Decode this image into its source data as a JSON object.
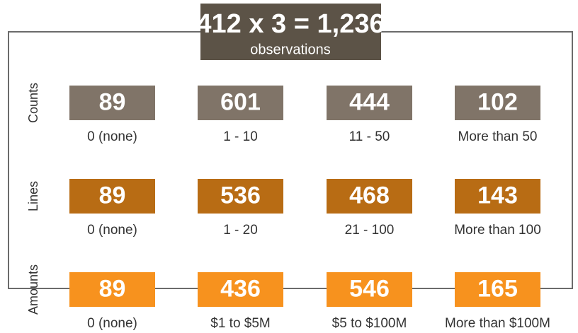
{
  "header": {
    "title": "412 x 3 = 1,236",
    "subtitle": "observations"
  },
  "rows": [
    {
      "name": "Counts",
      "color": "#807468",
      "cells": [
        {
          "value": 89,
          "label": "0 (none)"
        },
        {
          "value": 601,
          "label": "1 - 10"
        },
        {
          "value": 444,
          "label": "11 - 50"
        },
        {
          "value": 102,
          "label": "More than 50"
        }
      ]
    },
    {
      "name": "Lines",
      "color": "#b86c14",
      "cells": [
        {
          "value": 89,
          "label": "0 (none)"
        },
        {
          "value": 536,
          "label": "1 - 20"
        },
        {
          "value": 468,
          "label": "21 - 100"
        },
        {
          "value": 143,
          "label": "More than 100"
        }
      ]
    },
    {
      "name": "Amounts",
      "color": "#f7921e",
      "cells": [
        {
          "value": 89,
          "label": "0 (none)"
        },
        {
          "value": 436,
          "label": "$1 to $5M"
        },
        {
          "value": 546,
          "label": "$5 to $100M"
        },
        {
          "value": 165,
          "label": "More than $100M"
        }
      ]
    }
  ]
}
